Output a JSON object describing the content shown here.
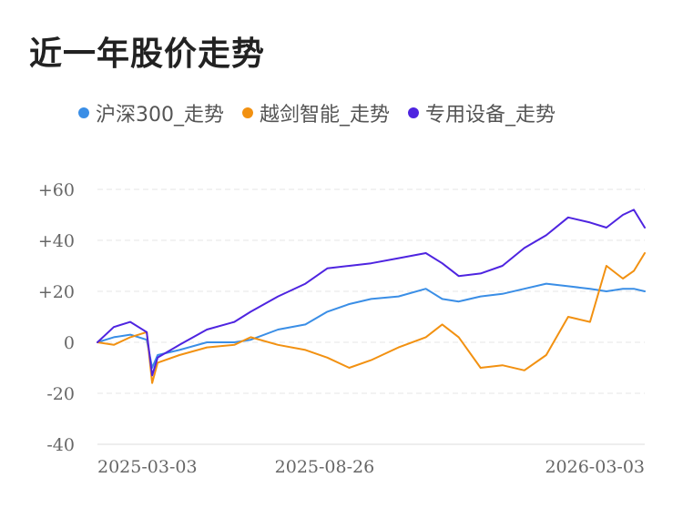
{
  "title": "近一年股价走势",
  "legend": [
    {
      "label": "沪深300_走势",
      "color": "#3a8ee6"
    },
    {
      "label": "越剑智能_走势",
      "color": "#f29111"
    },
    {
      "label": "专用设备_走势",
      "color": "#4e24e0"
    }
  ],
  "chart_data": {
    "type": "line",
    "title": "近一年股价走势",
    "xlabel": "",
    "ylabel": "",
    "ylim": [
      -40,
      60
    ],
    "yticks": [
      "+60",
      "+40",
      "+20",
      "0",
      "-20",
      "-40"
    ],
    "ytick_values": [
      60,
      40,
      20,
      0,
      -20,
      -40
    ],
    "xticks": [
      "2025-03-03",
      "2025-08-26",
      "2026-03-03"
    ],
    "xtick_positions": [
      0,
      0.415,
      1
    ],
    "grid": true,
    "legend_position": "top",
    "x": [
      0,
      0.03,
      0.06,
      0.09,
      0.1,
      0.11,
      0.15,
      0.2,
      0.25,
      0.28,
      0.33,
      0.38,
      0.42,
      0.46,
      0.5,
      0.55,
      0.6,
      0.63,
      0.66,
      0.7,
      0.74,
      0.78,
      0.82,
      0.86,
      0.9,
      0.93,
      0.96,
      0.98,
      1
    ],
    "series": [
      {
        "name": "沪深300_走势",
        "color": "#3a8ee6",
        "values": [
          0,
          2,
          3,
          1,
          -10,
          -5,
          -3,
          0,
          0,
          1,
          5,
          7,
          12,
          15,
          17,
          18,
          21,
          17,
          16,
          18,
          19,
          21,
          23,
          22,
          21,
          20,
          21,
          21,
          20
        ]
      },
      {
        "name": "越剑智能_走势",
        "color": "#f29111",
        "values": [
          0,
          -1,
          2,
          4,
          -16,
          -8,
          -5,
          -2,
          -1,
          2,
          -1,
          -3,
          -6,
          -10,
          -7,
          -2,
          2,
          7,
          2,
          -10,
          -9,
          -11,
          -5,
          10,
          8,
          30,
          25,
          28,
          35
        ]
      },
      {
        "name": "专用设备_走势",
        "color": "#4e24e0",
        "values": [
          0,
          6,
          8,
          4,
          -13,
          -6,
          -1,
          5,
          8,
          12,
          18,
          23,
          29,
          30,
          31,
          33,
          35,
          31,
          26,
          27,
          30,
          37,
          42,
          49,
          47,
          45,
          50,
          52,
          45
        ]
      }
    ]
  }
}
